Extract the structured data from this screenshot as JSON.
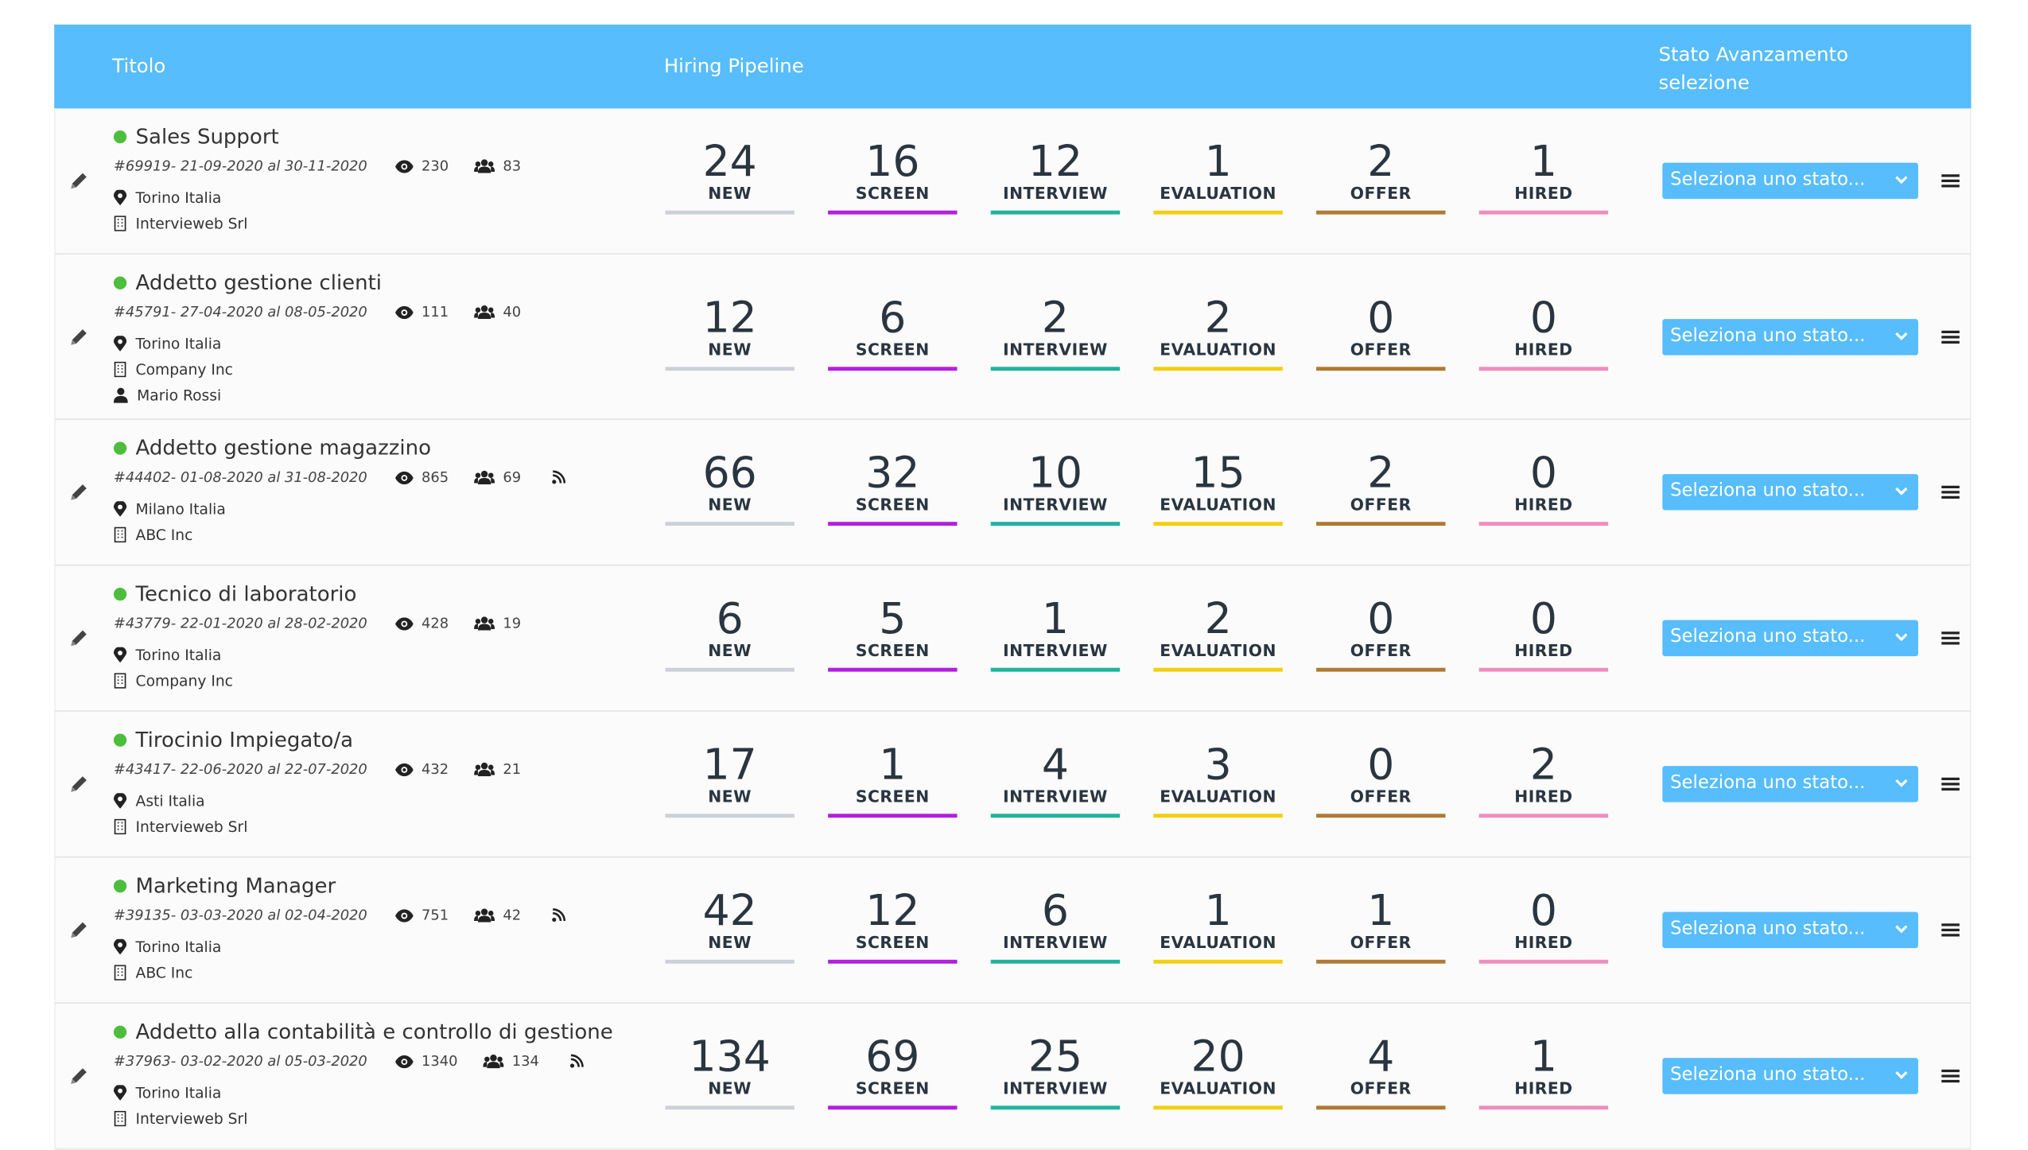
{
  "header": {
    "title_col": "Titolo",
    "pipeline_col": "Hiring Pipeline",
    "status_col": "Stato Avanzamento selezione"
  },
  "stages": [
    {
      "label": "NEW",
      "color": "#ccd1d7"
    },
    {
      "label": "SCREEN",
      "color": "#b31fe0"
    },
    {
      "label": "INTERVIEW",
      "color": "#1fb39c"
    },
    {
      "label": "EVALUATION",
      "color": "#f3cf12"
    },
    {
      "label": "OFFER",
      "color": "#b07a34"
    },
    {
      "label": "HIRED",
      "color": "#ee8ebb"
    }
  ],
  "select_placeholder": "Seleziona uno stato...",
  "rows": [
    {
      "title": "Sales Support",
      "meta": "#69919- 21-09-2020 al 30-11-2020",
      "views": "230",
      "candidates": "83",
      "feed": false,
      "location": "Torino Italia",
      "company": "Intervieweb Srl",
      "counts": [
        24,
        16,
        12,
        1,
        2,
        1
      ]
    },
    {
      "title": "Addetto gestione clienti",
      "meta": "#45791- 27-04-2020 al 08-05-2020",
      "views": "111",
      "candidates": "40",
      "feed": false,
      "location": "Torino Italia",
      "company": "Company Inc",
      "contact": "Mario Rossi",
      "counts": [
        12,
        6,
        2,
        2,
        0,
        0
      ]
    },
    {
      "title": "Addetto gestione magazzino",
      "meta": "#44402- 01-08-2020 al 31-08-2020",
      "views": "865",
      "candidates": "69",
      "feed": true,
      "location": "Milano Italia",
      "company": "ABC Inc",
      "counts": [
        66,
        32,
        10,
        15,
        2,
        0
      ]
    },
    {
      "title": "Tecnico di laboratorio",
      "meta": "#43779- 22-01-2020 al 28-02-2020",
      "views": "428",
      "candidates": "19",
      "feed": false,
      "location": "Torino Italia",
      "company": "Company Inc",
      "counts": [
        6,
        5,
        1,
        2,
        0,
        0
      ]
    },
    {
      "title": "Tirocinio Impiegato/a",
      "meta": "#43417- 22-06-2020 al 22-07-2020",
      "views": "432",
      "candidates": "21",
      "feed": false,
      "location": "Asti Italia",
      "company": "Intervieweb Srl",
      "counts": [
        17,
        1,
        4,
        3,
        0,
        2
      ]
    },
    {
      "title": "Marketing Manager",
      "meta": "#39135- 03-03-2020 al 02-04-2020",
      "views": "751",
      "candidates": "42",
      "feed": true,
      "location": "Torino Italia",
      "company": "ABC Inc",
      "counts": [
        42,
        12,
        6,
        1,
        1,
        0
      ]
    },
    {
      "title": "Addetto alla contabilità e controllo di gestione",
      "meta": "#37963- 03-02-2020 al 05-03-2020",
      "views": "1340",
      "candidates": "134",
      "feed": true,
      "location": "Torino Italia",
      "company": "Intervieweb Srl",
      "counts": [
        134,
        69,
        25,
        20,
        4,
        1
      ]
    }
  ]
}
